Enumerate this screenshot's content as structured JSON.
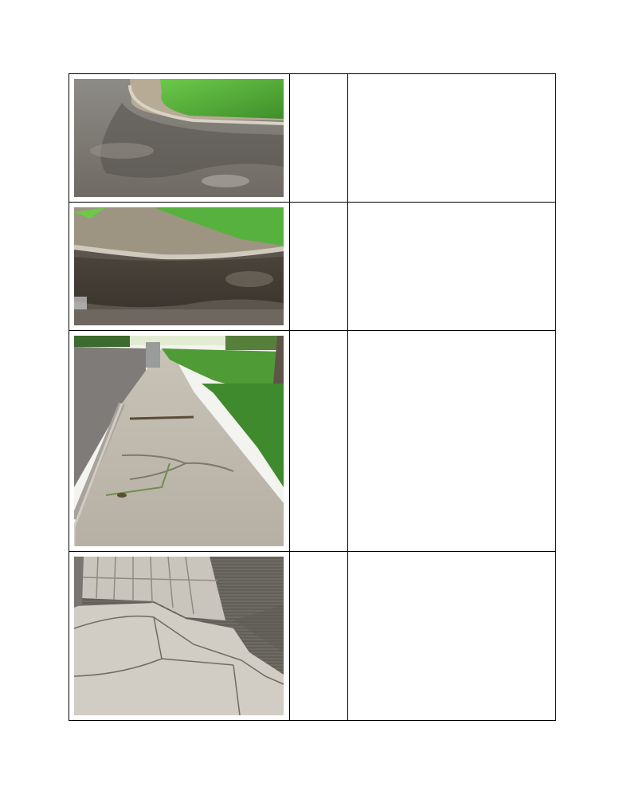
{
  "table": {
    "rows": [
      {
        "photo": "curb-corner-puddle-photo",
        "col2": "",
        "col3": ""
      },
      {
        "photo": "curb-edge-standing-water-photo",
        "col2": "",
        "col3": ""
      },
      {
        "photo": "cracked-sidewalk-along-street-photo",
        "col2": "",
        "col3": ""
      },
      {
        "photo": "broken-sidewalk-slabs-photo",
        "col2": "",
        "col3": ""
      }
    ]
  }
}
